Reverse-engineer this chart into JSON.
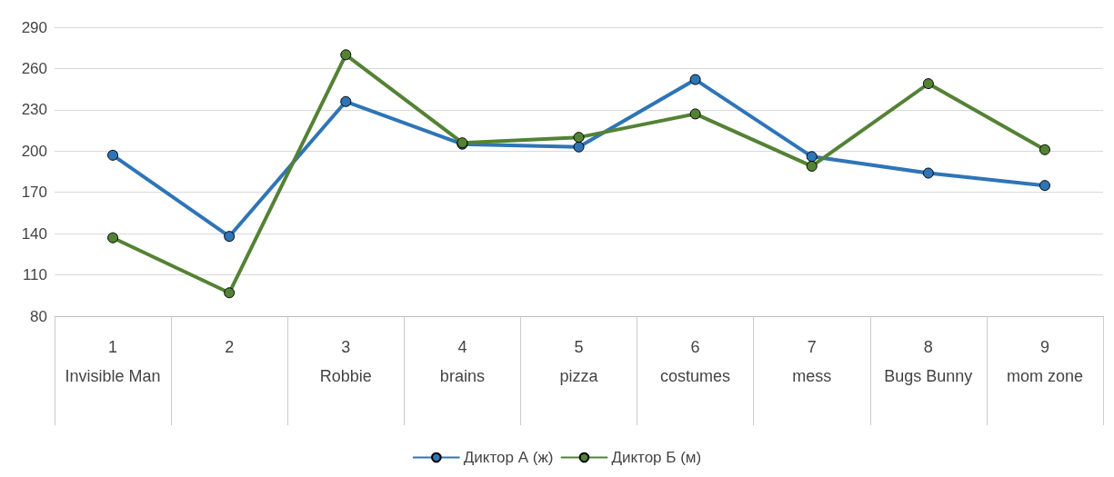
{
  "chart_data": {
    "type": "line",
    "categories": [
      "1\nInvisible Man",
      "2",
      "3\nRobbie",
      "4\nbrains",
      "5\npizza",
      "6\ncostumes",
      "7\nmess",
      "8\nBugs Bunny",
      "9\nmom zone"
    ],
    "series": [
      {
        "name": "Диктор А (ж)",
        "color": "#2e75b6",
        "values": [
          197,
          138,
          236,
          205,
          203,
          252,
          196,
          184,
          175
        ]
      },
      {
        "name": "Диктор Б (м)",
        "color": "#548235",
        "values": [
          137,
          97,
          270,
          206,
          210,
          227,
          189,
          249,
          201
        ]
      }
    ],
    "ylim": [
      80,
      290
    ],
    "yticks": [
      80,
      110,
      140,
      170,
      200,
      230,
      260,
      290
    ],
    "grid": "y",
    "legend": "bottom",
    "marker": "circle",
    "line_style": "solid"
  }
}
